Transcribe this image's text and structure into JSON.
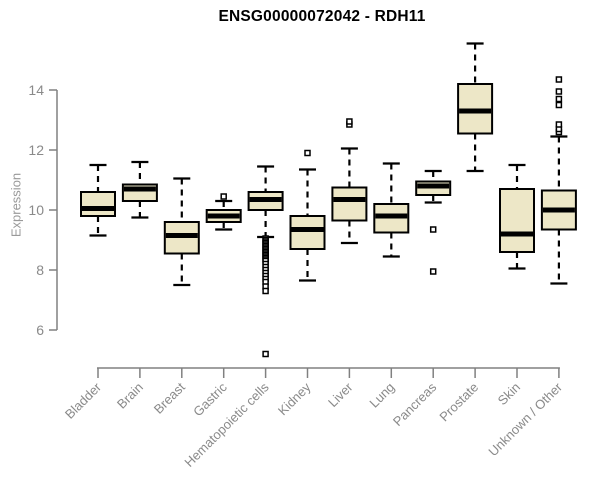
{
  "title": "ENSG00000072042 - RDH11",
  "chart_data": {
    "type": "boxplot",
    "title": "ENSG00000072042 - RDH11",
    "ylabel": "Expression",
    "xlabel": "",
    "y_ticks": [
      6,
      8,
      10,
      12,
      14
    ],
    "ylim": [
      5.0,
      15.8
    ],
    "grid": false,
    "legend": null,
    "colors": {
      "box_fill": "#EDE7C7",
      "box_stroke": "#000000",
      "median": "#000000",
      "whisker": "#000000",
      "axis": "#808080",
      "tick_label": "#8a8a8a",
      "title": "#000000"
    },
    "categories": [
      "Bladder",
      "Brain",
      "Breast",
      "Gastric",
      "Hematopoietic cells",
      "Kidney",
      "Liver",
      "Lung",
      "Pancreas",
      "Prostate",
      "Skin",
      "Unknown / Other"
    ],
    "series": [
      {
        "category": "Bladder",
        "whisker_low": 9.15,
        "q1": 9.8,
        "median": 10.05,
        "q3": 10.6,
        "whisker_high": 11.5,
        "outliers": []
      },
      {
        "category": "Brain",
        "whisker_low": 9.75,
        "q1": 10.3,
        "median": 10.7,
        "q3": 10.85,
        "whisker_high": 11.6,
        "outliers": []
      },
      {
        "category": "Breast",
        "whisker_low": 7.5,
        "q1": 8.55,
        "median": 9.15,
        "q3": 9.6,
        "whisker_high": 11.05,
        "outliers": []
      },
      {
        "category": "Gastric",
        "whisker_low": 9.35,
        "q1": 9.6,
        "median": 9.8,
        "q3": 10.0,
        "whisker_high": 10.3,
        "outliers": [
          10.45
        ]
      },
      {
        "category": "Hematopoietic cells",
        "whisker_low": 9.1,
        "q1": 10.0,
        "median": 10.35,
        "q3": 10.6,
        "whisker_high": 11.45,
        "outliers": [
          9.05,
          9.0,
          8.95,
          8.9,
          8.85,
          8.8,
          8.75,
          8.7,
          8.65,
          8.6,
          8.55,
          8.5,
          8.45,
          8.4,
          8.35,
          8.3,
          8.2,
          8.1,
          8.0,
          7.9,
          7.8,
          7.7,
          7.6,
          7.45,
          7.3,
          5.2
        ]
      },
      {
        "category": "Kidney",
        "whisker_low": 7.65,
        "q1": 8.7,
        "median": 9.35,
        "q3": 9.8,
        "whisker_high": 11.35,
        "outliers": [
          11.9
        ]
      },
      {
        "category": "Liver",
        "whisker_low": 8.9,
        "q1": 9.65,
        "median": 10.35,
        "q3": 10.75,
        "whisker_high": 12.05,
        "outliers": [
          12.85,
          12.95
        ]
      },
      {
        "category": "Lung",
        "whisker_low": 8.45,
        "q1": 9.25,
        "median": 9.8,
        "q3": 10.2,
        "whisker_high": 11.55,
        "outliers": []
      },
      {
        "category": "Pancreas",
        "whisker_low": 10.25,
        "q1": 10.5,
        "median": 10.8,
        "q3": 10.95,
        "whisker_high": 11.3,
        "outliers": [
          9.35,
          7.95
        ]
      },
      {
        "category": "Prostate",
        "whisker_low": 11.3,
        "q1": 12.55,
        "median": 13.3,
        "q3": 14.2,
        "whisker_high": 15.55,
        "outliers": []
      },
      {
        "category": "Skin",
        "whisker_low": 8.05,
        "q1": 8.6,
        "median": 9.2,
        "q3": 10.7,
        "whisker_high": 11.5,
        "outliers": []
      },
      {
        "category": "Unknown / Other",
        "whisker_low": 7.55,
        "q1": 9.35,
        "median": 10.0,
        "q3": 10.65,
        "whisker_high": 12.45,
        "outliers": [
          12.6,
          12.7,
          12.85,
          13.5,
          13.7,
          13.95,
          14.35
        ]
      }
    ]
  }
}
